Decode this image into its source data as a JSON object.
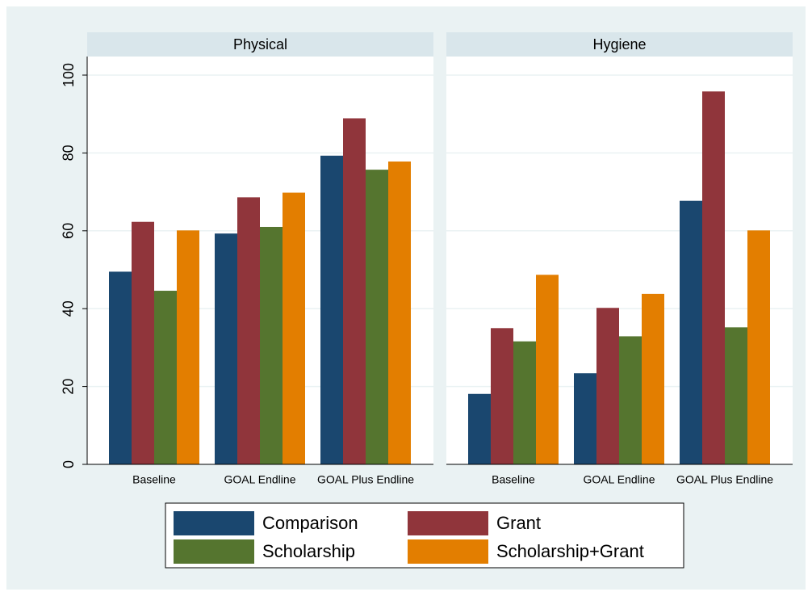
{
  "chart_data": {
    "type": "bar",
    "panels": [
      "Physical",
      "Hygiene"
    ],
    "categories": [
      "Baseline",
      "GOAL Endline",
      "GOAL Plus Endline"
    ],
    "series": [
      {
        "name": "Comparison",
        "color": "#1a476f",
        "values": [
          [
            49.5,
            59.3,
            79.3
          ],
          [
            18.1,
            23.4,
            67.7
          ]
        ]
      },
      {
        "name": "Grant",
        "color": "#90353b",
        "values": [
          [
            62.3,
            68.6,
            88.9
          ],
          [
            35.0,
            40.2,
            95.8
          ]
        ]
      },
      {
        "name": "Scholarship",
        "color": "#55752f",
        "values": [
          [
            44.6,
            61.0,
            75.7
          ],
          [
            31.6,
            32.9,
            35.2
          ]
        ]
      },
      {
        "name": "Scholarship+Grant",
        "color": "#e37e00",
        "values": [
          [
            60.1,
            69.8,
            77.8
          ],
          [
            48.7,
            43.8,
            60.1
          ]
        ]
      }
    ],
    "ylim": [
      0,
      100
    ],
    "yticks": [
      0,
      20,
      40,
      60,
      80,
      100
    ],
    "grid": true
  }
}
